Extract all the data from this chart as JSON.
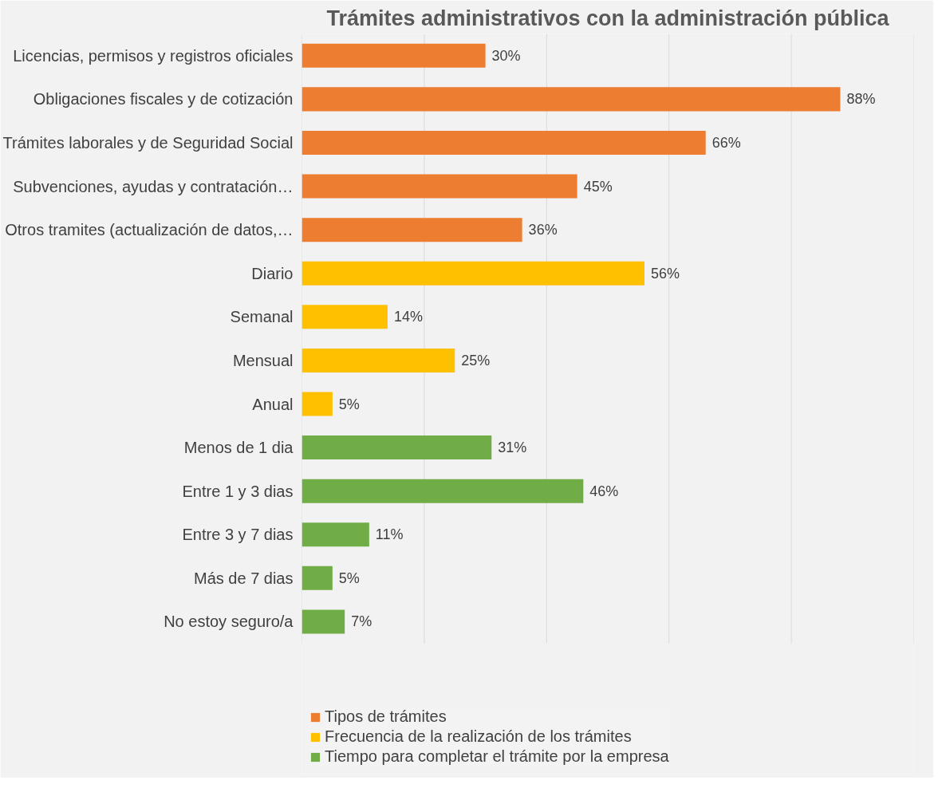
{
  "chart_data": {
    "type": "bar",
    "orientation": "horizontal",
    "title": "Trámites administrativos con la administración pública",
    "categories": [
      "Licencias, permisos y registros oficiales",
      "Obligaciones fiscales y de cotización",
      "Trámites laborales y de Seguridad Social",
      "Subvenciones, ayudas y contratación…",
      "Otros tramites (actualización de datos,…",
      "Diario",
      "Semanal",
      "Mensual",
      "Anual",
      "Menos de 1 dia",
      "Entre 1 y 3 dias",
      "Entre 3 y 7 dias",
      "Más de 7 dias",
      "No estoy seguro/a"
    ],
    "series": [
      {
        "name": "Tipos de trámites",
        "color": "#ed7d31",
        "values": [
          30,
          88,
          66,
          45,
          36,
          null,
          null,
          null,
          null,
          null,
          null,
          null,
          null,
          null
        ],
        "value_labels": [
          "30%",
          "88%",
          "66%",
          "45%",
          "36%",
          null,
          null,
          null,
          null,
          null,
          null,
          null,
          null,
          null
        ]
      },
      {
        "name": "Frecuencia de la realización de los trámites",
        "color": "#ffc000",
        "values": [
          null,
          null,
          null,
          null,
          null,
          56,
          14,
          25,
          5,
          null,
          null,
          null,
          null,
          null
        ],
        "value_labels": [
          null,
          null,
          null,
          null,
          null,
          "56%",
          "14%",
          "25%",
          "5%",
          null,
          null,
          null,
          null,
          null
        ]
      },
      {
        "name": "Tiempo para completar el trámite por la empresa",
        "color": "#70ad47",
        "values": [
          null,
          null,
          null,
          null,
          null,
          null,
          null,
          null,
          null,
          31,
          46,
          11,
          5,
          7
        ],
        "value_labels": [
          null,
          null,
          null,
          null,
          null,
          null,
          null,
          null,
          null,
          "31%",
          "46%",
          "11%",
          "5%",
          "7%"
        ]
      }
    ],
    "xlim": [
      0,
      100
    ],
    "xticks": [
      {
        "value": 0,
        "label": null
      },
      {
        "value": 20,
        "label": null
      },
      {
        "value": 40,
        "label": null
      },
      {
        "value": 60,
        "label": null
      },
      {
        "value": 80,
        "label": null
      },
      {
        "value": 100,
        "label": null
      }
    ],
    "tick_labels": "y",
    "grid": "x",
    "legend": "bottom left"
  }
}
